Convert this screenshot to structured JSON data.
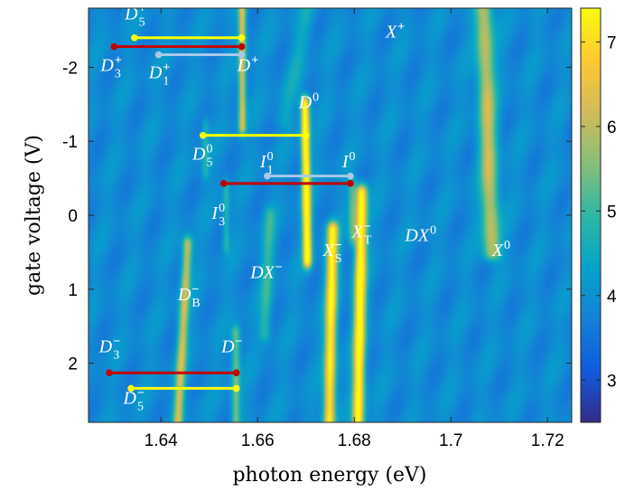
{
  "chart_data": {
    "type": "heatmap",
    "xlabel": "photon energy (eV)",
    "ylabel": "gate voltage (V)",
    "xlim": [
      1.625,
      1.725
    ],
    "ylim": [
      -2.8,
      2.8
    ],
    "y_reversed": true,
    "xticks": [
      1.64,
      1.66,
      1.68,
      1.7,
      1.72
    ],
    "xtick_labels": [
      "1.64",
      "1.66",
      "1.68",
      "1.7",
      "1.72"
    ],
    "yticks": [
      -2,
      -1,
      0,
      1,
      2
    ],
    "ytick_labels": [
      "-2",
      "-1",
      "0",
      "1",
      "2"
    ],
    "colorbar": {
      "range": [
        2.5,
        7.4
      ],
      "ticks": [
        3,
        4,
        5,
        6,
        7
      ],
      "tick_labels": [
        "3",
        "4",
        "5",
        "6",
        "7"
      ],
      "colormap": "parula",
      "stops": [
        "#352a87",
        "#0f5cdd",
        "#1481d6",
        "#06a4ca",
        "#2eb7a4",
        "#87bf77",
        "#d1bb59",
        "#fec832",
        "#f9fb0e"
      ]
    },
    "peaks": [
      {
        "label": "X+",
        "x0": 1.6705,
        "x1": 1.6655,
        "y0": -2.8,
        "y1": -1.3,
        "amp": 0.5,
        "width": 0.0016
      },
      {
        "label": "X0",
        "x0": 1.7068,
        "x1": 1.7085,
        "y0": -2.8,
        "y1": 0.5,
        "amp": 2.2,
        "width": 0.0018
      },
      {
        "label": "D+",
        "x0": 1.6568,
        "x1": 1.6568,
        "y0": -2.8,
        "y1": -1.2,
        "amp": 2.5,
        "width": 0.0008
      },
      {
        "label": "D0",
        "x0": 1.6698,
        "x1": 1.6703,
        "y0": -1.5,
        "y1": 0.6,
        "amp": 4.0,
        "width": 0.0009
      },
      {
        "label": "I0",
        "x0": 1.6795,
        "x1": 1.6795,
        "y0": -0.4,
        "y1": 0.3,
        "amp": 1.2,
        "width": 0.0008
      },
      {
        "label": "I3",
        "x0": 1.6535,
        "x1": 1.6535,
        "y0": -0.4,
        "y1": 0.4,
        "amp": 1.0,
        "width": 0.0007
      },
      {
        "label": "D5",
        "x0": 1.6492,
        "x1": 1.6492,
        "y0": -1.2,
        "y1": -0.6,
        "amp": 0.9,
        "width": 0.0008
      },
      {
        "label": "XS-",
        "x0": 1.6755,
        "x1": 1.6748,
        "y0": 0.2,
        "y1": 2.8,
        "amp": 3.5,
        "width": 0.0012
      },
      {
        "label": "XT-",
        "x0": 1.6815,
        "x1": 1.6808,
        "y0": -0.3,
        "y1": 2.8,
        "amp": 3.8,
        "width": 0.0012
      },
      {
        "label": "DX-",
        "x0": 1.6625,
        "x1": 1.6615,
        "y0": 0.0,
        "y1": 1.6,
        "amp": 1.0,
        "width": 0.0012
      },
      {
        "label": "DB-",
        "x0": 1.6455,
        "x1": 1.6435,
        "y0": 0.4,
        "y1": 2.8,
        "amp": 2.3,
        "width": 0.001
      },
      {
        "label": "D-",
        "x0": 1.6555,
        "x1": 1.6555,
        "y0": 1.6,
        "y1": 2.8,
        "amp": 1.6,
        "width": 0.0009
      }
    ],
    "annotations": [
      {
        "text": "X",
        "sup": "+",
        "x": 1.6865,
        "y": -2.4
      },
      {
        "text": "X",
        "sup": "0",
        "x": 1.7085,
        "y": 0.55
      },
      {
        "text": "DX",
        "sup": "0",
        "x": 1.6905,
        "y": 0.35
      },
      {
        "text": "D",
        "sup": "0",
        "x": 1.6685,
        "y": -1.45
      },
      {
        "text": "D",
        "sup": "+",
        "x": 1.6558,
        "y": -1.95
      },
      {
        "text": "D",
        "sub": "5",
        "sup": "+",
        "x": 1.6325,
        "y": -2.65
      },
      {
        "text": "D",
        "sub": "3",
        "sup": "+",
        "x": 1.6275,
        "y": -1.95
      },
      {
        "text": "D",
        "sub": "1",
        "sup": "+",
        "x": 1.6375,
        "y": -1.85
      },
      {
        "text": "D",
        "sub": "5",
        "sup": "0",
        "x": 1.6465,
        "y": -0.75
      },
      {
        "text": "I",
        "sub": "1",
        "sup": "0",
        "x": 1.6605,
        "y": -0.65
      },
      {
        "text": "I",
        "sup": "0",
        "x": 1.6775,
        "y": -0.65
      },
      {
        "text": "I",
        "sub": "3",
        "sup": "0",
        "x": 1.6505,
        "y": 0.05
      },
      {
        "text": "X",
        "sub": "S",
        "sup": "−",
        "x": 1.6735,
        "y": 0.55
      },
      {
        "text": "X",
        "sub": "T",
        "sup": "−",
        "x": 1.6795,
        "y": 0.3
      },
      {
        "text": "DX",
        "sup": "−",
        "x": 1.6585,
        "y": 0.85
      },
      {
        "text": "D",
        "sub": "B",
        "sup": "−",
        "x": 1.6435,
        "y": 1.15
      },
      {
        "text": "D",
        "sup": "−",
        "x": 1.6525,
        "y": 1.85
      },
      {
        "text": "D",
        "sub": "3",
        "sup": "−",
        "x": 1.6272,
        "y": 1.85
      },
      {
        "text": "D",
        "sub": "5",
        "sup": "−",
        "x": 1.6322,
        "y": 2.55
      }
    ],
    "lines": [
      {
        "color": "#ffff00",
        "x": [
          1.6345,
          1.6567
        ],
        "y": -2.4
      },
      {
        "color": "#c00000",
        "x": [
          1.6303,
          1.6567
        ],
        "y": -2.28
      },
      {
        "color": "#a9c8e8",
        "x": [
          1.6395,
          1.6567
        ],
        "y": -2.17
      },
      {
        "color": "#ffff00",
        "x": [
          1.6487,
          1.67
        ],
        "y": -1.08
      },
      {
        "color": "#a9c8e8",
        "x": [
          1.662,
          1.6792
        ],
        "y": -0.53
      },
      {
        "color": "#c00000",
        "x": [
          1.653,
          1.6792
        ],
        "y": -0.43
      },
      {
        "color": "#c00000",
        "x": [
          1.6293,
          1.6556
        ],
        "y": 2.13
      },
      {
        "color": "#ffff00",
        "x": [
          1.6338,
          1.6556
        ],
        "y": 2.34
      }
    ]
  }
}
